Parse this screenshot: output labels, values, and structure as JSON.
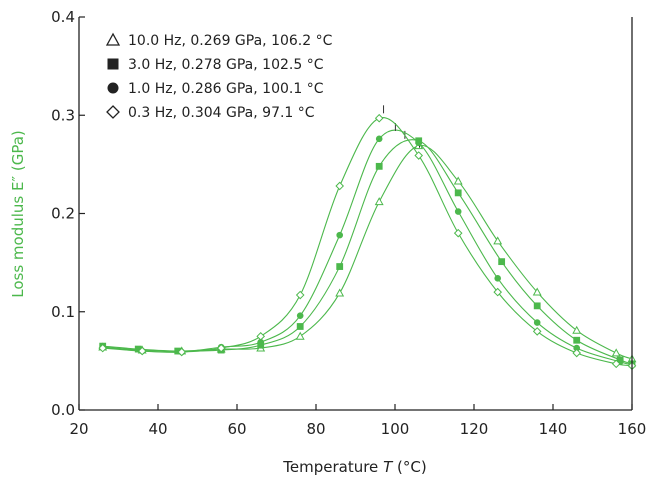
{
  "chart_data": {
    "type": "line",
    "xlabel": "Temperature",
    "xlabel_symbol": "T",
    "xlabel_unit": "(°C)",
    "ylabel": "Loss modulus E″ (GPa)",
    "xlim": [
      20,
      160
    ],
    "ylim": [
      0.0,
      0.4
    ],
    "x_ticks": [
      "20",
      "40",
      "60",
      "80",
      "100",
      "120",
      "140",
      "160"
    ],
    "y_ticks": [
      "0.0",
      "0.1",
      "0.2",
      "0.3",
      "0.4"
    ],
    "grid": false,
    "legend_position": "top-left",
    "series_color": "#4cb84c",
    "series": [
      {
        "name": "10.0 Hz, 0.269 GPa, 106.2 °C",
        "marker": "triangle-open",
        "peak": [
          106.2,
          0.269
        ],
        "points": [
          [
            26,
            0.064
          ],
          [
            36,
            0.061
          ],
          [
            46,
            0.06
          ],
          [
            56,
            0.062
          ],
          [
            66,
            0.063
          ],
          [
            76,
            0.075
          ],
          [
            86,
            0.119
          ],
          [
            96,
            0.212
          ],
          [
            106,
            0.269
          ],
          [
            116,
            0.233
          ],
          [
            126,
            0.172
          ],
          [
            136,
            0.12
          ],
          [
            146,
            0.081
          ],
          [
            156,
            0.058
          ],
          [
            160,
            0.052
          ]
        ]
      },
      {
        "name": "3.0 Hz, 0.278 GPa, 102.5 °C",
        "marker": "square-filled",
        "peak": [
          102.5,
          0.278
        ],
        "points": [
          [
            26,
            0.065
          ],
          [
            35,
            0.062
          ],
          [
            45,
            0.06
          ],
          [
            56,
            0.061
          ],
          [
            66,
            0.066
          ],
          [
            76,
            0.085
          ],
          [
            86,
            0.146
          ],
          [
            96,
            0.248
          ],
          [
            106,
            0.274
          ],
          [
            116,
            0.221
          ],
          [
            127,
            0.151
          ],
          [
            136,
            0.106
          ],
          [
            146,
            0.071
          ],
          [
            157,
            0.051
          ],
          [
            160,
            0.047
          ]
        ]
      },
      {
        "name": "1.0 Hz, 0.286 GPa, 100.1 °C",
        "marker": "circle-filled",
        "peak": [
          100.1,
          0.286
        ],
        "points": [
          [
            26,
            0.064
          ],
          [
            36,
            0.06
          ],
          [
            46,
            0.059
          ],
          [
            56,
            0.064
          ],
          [
            66,
            0.069
          ],
          [
            76,
            0.096
          ],
          [
            86,
            0.178
          ],
          [
            96,
            0.276
          ],
          [
            106,
            0.272
          ],
          [
            116,
            0.202
          ],
          [
            126,
            0.134
          ],
          [
            136,
            0.089
          ],
          [
            146,
            0.063
          ],
          [
            157,
            0.049
          ],
          [
            160,
            0.046
          ]
        ]
      },
      {
        "name": "0.3 Hz, 0.304 GPa, 97.1 °C",
        "marker": "diamond-open",
        "peak": [
          97.1,
          0.304
        ],
        "points": [
          [
            26,
            0.063
          ],
          [
            36,
            0.06
          ],
          [
            46,
            0.059
          ],
          [
            56,
            0.063
          ],
          [
            66,
            0.075
          ],
          [
            76,
            0.117
          ],
          [
            86,
            0.228
          ],
          [
            96,
            0.297
          ],
          [
            106,
            0.259
          ],
          [
            116,
            0.18
          ],
          [
            126,
            0.12
          ],
          [
            136,
            0.08
          ],
          [
            146,
            0.058
          ],
          [
            156,
            0.047
          ],
          [
            160,
            0.045
          ]
        ]
      }
    ]
  }
}
